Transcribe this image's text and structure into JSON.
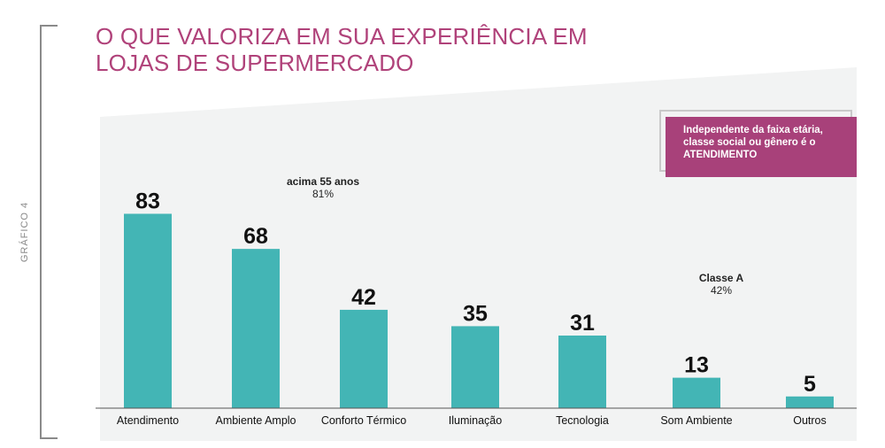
{
  "side_label": "GRÁFICO 4",
  "title_lines": [
    "O QUE VALORIZA EM SUA EXPERIÊNCIA EM",
    "LOJAS DE SUPERMERCADO"
  ],
  "callout": {
    "lines": [
      "Independente da faixa etária,",
      "classe social ou gênero é o",
      "ATENDIMENTO"
    ]
  },
  "notes": [
    {
      "line1": "acima 55 anos",
      "line2": "81%"
    },
    {
      "line1": "Classe A",
      "line2": "42%"
    }
  ],
  "colors": {
    "title": "#b0427a",
    "bar": "#43b5b5",
    "callout": "#a8417a",
    "panel": "#f2f3f3"
  },
  "chart_data": {
    "type": "bar",
    "categories": [
      "Atendimento",
      "Ambiente Amplo",
      "Conforto Térmico",
      "Iluminação",
      "Tecnologia",
      "Som Ambiente",
      "Outros"
    ],
    "values": [
      83,
      68,
      42,
      35,
      31,
      13,
      5
    ],
    "title": "O QUE VALORIZA EM SUA EXPERIÊNCIA EM LOJAS DE SUPERMERCADO",
    "xlabel": "",
    "ylabel": "",
    "ylim": [
      0,
      100
    ],
    "grid": false,
    "legend": "none"
  }
}
